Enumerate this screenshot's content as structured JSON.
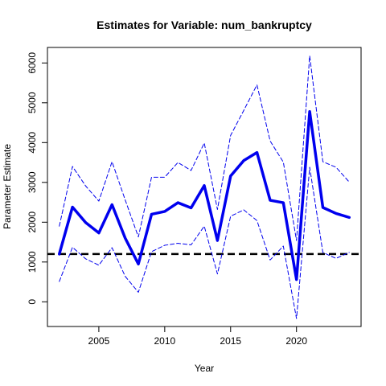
{
  "chart_data": {
    "type": "line",
    "title": "Estimates for Variable: num_bankruptcy",
    "xlabel": "Year",
    "ylabel": "Parameter Estimate",
    "xlim": [
      2001.1,
      2024.9
    ],
    "ylim": [
      -620,
      6390
    ],
    "x_ticks": [
      2005,
      2010,
      2015,
      2020
    ],
    "y_ticks": [
      0,
      1000,
      2000,
      3000,
      4000,
      5000,
      6000
    ],
    "x": [
      2002,
      2003,
      2004,
      2005,
      2006,
      2007,
      2008,
      2009,
      2010,
      2011,
      2012,
      2013,
      2014,
      2015,
      2016,
      2017,
      2018,
      2019,
      2020,
      2021,
      2022,
      2023,
      2024
    ],
    "series": [
      {
        "role": "estimate",
        "color": "#0000ee",
        "style": "solid-thick",
        "values": [
          1200,
          2380,
          1990,
          1730,
          2440,
          1600,
          950,
          2200,
          2270,
          2490,
          2360,
          2920,
          1540,
          3160,
          3550,
          3750,
          2550,
          2490,
          560,
          4780,
          2370,
          2220,
          2120
        ]
      },
      {
        "role": "upper_bound",
        "color": "#0000ee",
        "style": "dashed-thin",
        "values": [
          1900,
          3400,
          2910,
          2530,
          3520,
          2560,
          1630,
          3130,
          3130,
          3500,
          3300,
          3990,
          2320,
          4180,
          4810,
          5450,
          4040,
          3510,
          1540,
          6180,
          3520,
          3380,
          3010
        ]
      },
      {
        "role": "lower_bound",
        "color": "#0000ee",
        "style": "dashed-thin",
        "values": [
          510,
          1370,
          1080,
          920,
          1360,
          640,
          240,
          1260,
          1420,
          1470,
          1430,
          1900,
          700,
          2150,
          2310,
          2040,
          1050,
          1400,
          -420,
          3380,
          1240,
          1090,
          1240
        ]
      }
    ],
    "reference_line": {
      "y": 1200,
      "color": "#000000",
      "style": "dashed-thick"
    },
    "grid": false,
    "box": true
  }
}
